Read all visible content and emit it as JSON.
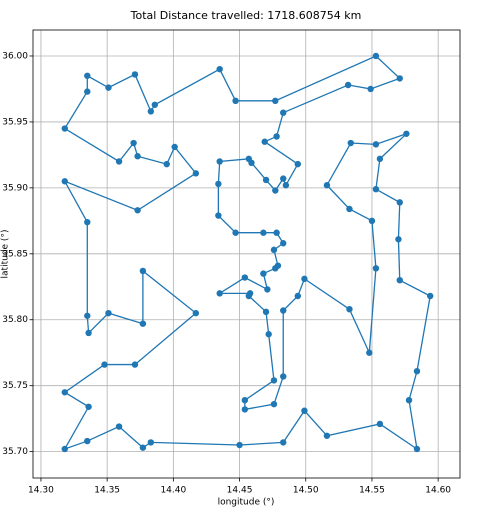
{
  "chart_data": {
    "type": "line",
    "title": "Total Distance travelled: 1718.608754 km",
    "xlabel": "longitude (°)",
    "ylabel": "latitude (°)",
    "color": "#1f77b4",
    "grid": true,
    "closed": true,
    "markers": true,
    "xlim": [
      14.294,
      14.6165
    ],
    "ylim": [
      35.68,
      36.0197
    ],
    "xticks": [
      {
        "value": 14.3,
        "label": "14.30"
      },
      {
        "value": 14.35,
        "label": "14.35"
      },
      {
        "value": 14.4,
        "label": "14.40"
      },
      {
        "value": 14.45,
        "label": "14.45"
      },
      {
        "value": 14.5,
        "label": "14.50"
      },
      {
        "value": 14.55,
        "label": "14.55"
      },
      {
        "value": 14.6,
        "label": "14.60"
      }
    ],
    "yticks": [
      {
        "value": 35.7,
        "label": "35.70"
      },
      {
        "value": 35.75,
        "label": "35.75"
      },
      {
        "value": 35.8,
        "label": "35.80"
      },
      {
        "value": 35.85,
        "label": "35.85"
      },
      {
        "value": 35.9,
        "label": "35.90"
      },
      {
        "value": 35.95,
        "label": "35.95"
      },
      {
        "value": 36.0,
        "label": "36.00"
      }
    ],
    "x": [
      14.553,
      14.571,
      14.549,
      14.532,
      14.483,
      14.478,
      14.469,
      14.494,
      14.485,
      14.483,
      14.477,
      14.47,
      14.459,
      14.457,
      14.435,
      14.434,
      14.434,
      14.447,
      14.468,
      14.478,
      14.483,
      14.476,
      14.479,
      14.477,
      14.468,
      14.471,
      14.454,
      14.435,
      14.458,
      14.457,
      14.47,
      14.472,
      14.476,
      14.454,
      14.454,
      14.476,
      14.483,
      14.483,
      14.494,
      14.499,
      14.533,
      14.548,
      14.553,
      14.55,
      14.533,
      14.516,
      14.534,
      14.553,
      14.576,
      14.556,
      14.553,
      14.571,
      14.57,
      14.571,
      14.594,
      14.584,
      14.578,
      14.584,
      14.556,
      14.516,
      14.499,
      14.483,
      14.45,
      14.383,
      14.377,
      14.359,
      14.335,
      14.318,
      14.336,
      14.318,
      14.348,
      14.371,
      14.417,
      14.377,
      14.377,
      14.351,
      14.336,
      14.335,
      14.335,
      14.318,
      14.373,
      14.417,
      14.401,
      14.395,
      14.373,
      14.37,
      14.359,
      14.318,
      14.335,
      14.335,
      14.351,
      14.371,
      14.383,
      14.386,
      14.435,
      14.447,
      14.477
    ],
    "values": [
      36.0,
      35.983,
      35.975,
      35.978,
      35.957,
      35.939,
      35.935,
      35.918,
      35.902,
      35.907,
      35.898,
      35.906,
      35.919,
      35.922,
      35.92,
      35.903,
      35.879,
      35.866,
      35.866,
      35.866,
      35.858,
      35.853,
      35.841,
      35.839,
      35.835,
      35.823,
      35.832,
      35.82,
      35.82,
      35.818,
      35.806,
      35.789,
      35.754,
      35.739,
      35.732,
      35.736,
      35.757,
      35.807,
      35.818,
      35.831,
      35.808,
      35.775,
      35.839,
      35.875,
      35.884,
      35.902,
      35.934,
      35.933,
      35.941,
      35.922,
      35.899,
      35.889,
      35.861,
      35.83,
      35.818,
      35.761,
      35.739,
      35.702,
      35.721,
      35.712,
      35.731,
      35.707,
      35.705,
      35.707,
      35.703,
      35.719,
      35.708,
      35.702,
      35.734,
      35.745,
      35.766,
      35.766,
      35.805,
      35.837,
      35.797,
      35.805,
      35.79,
      35.803,
      35.874,
      35.905,
      35.883,
      35.911,
      35.931,
      35.918,
      35.924,
      35.934,
      35.92,
      35.945,
      35.973,
      35.985,
      35.976,
      35.986,
      35.958,
      35.963,
      35.99,
      35.966,
      35.966
    ]
  }
}
